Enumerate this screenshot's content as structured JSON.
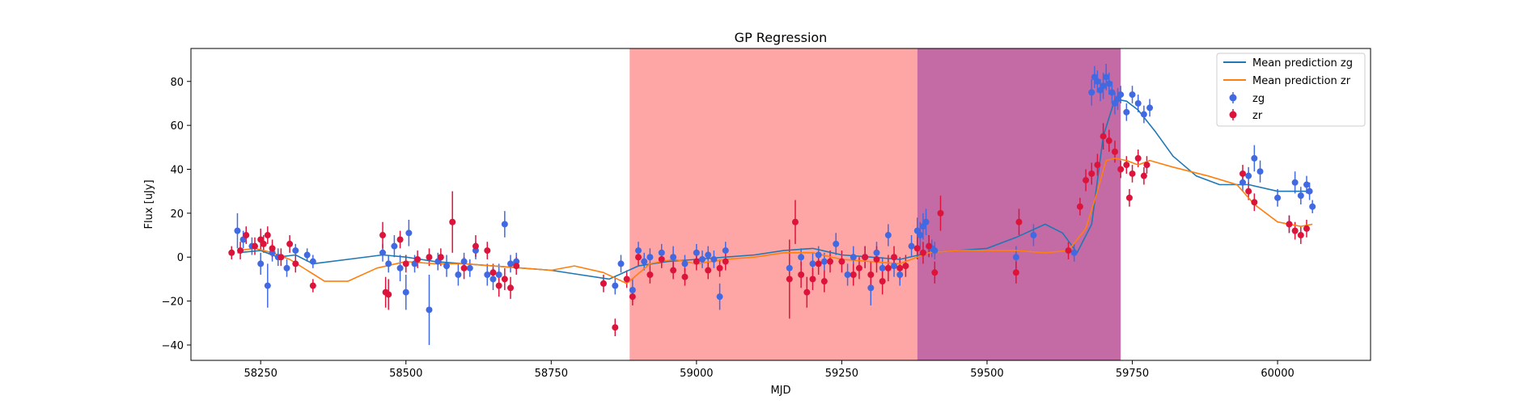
{
  "chart_data": {
    "type": "scatter",
    "title": "GP Regression",
    "xlabel": "MJD",
    "ylabel": "Flux [uJy]",
    "xlim": [
      58130,
      60160
    ],
    "ylim": [
      -47,
      95
    ],
    "xticks": [
      58250,
      58500,
      58750,
      59000,
      59250,
      59500,
      59750,
      60000
    ],
    "yticks": [
      -40,
      -20,
      0,
      20,
      40,
      60,
      80
    ],
    "grid": false,
    "legend_position": "top-right",
    "shaded_regions": [
      {
        "x0": 58885,
        "x1": 59380,
        "color": "#fea6a6"
      },
      {
        "x0": 59380,
        "x1": 59730,
        "color": "#c46ba5"
      }
    ],
    "lines": [
      {
        "name": "Mean prediction zg",
        "color": "#1f77b4",
        "x": [
          58210,
          58250,
          58280,
          58310,
          58340,
          58400,
          58460,
          58500,
          58550,
          58600,
          58650,
          58700,
          58750,
          58800,
          58850,
          58900,
          58950,
          59000,
          59050,
          59100,
          59150,
          59200,
          59250,
          59300,
          59350,
          59400,
          59450,
          59500,
          59550,
          59600,
          59630,
          59655,
          59680,
          59700,
          59720,
          59740,
          59760,
          59790,
          59820,
          59860,
          59900,
          59950,
          60000,
          60040,
          60060
        ],
        "values": [
          2,
          3,
          0,
          1,
          -3,
          -1,
          1,
          0,
          -2,
          -3,
          -4,
          -5,
          -6,
          -8,
          -10,
          -4,
          -2,
          -1,
          0,
          1,
          3,
          4,
          1,
          0,
          -1,
          2,
          3,
          4,
          9,
          15,
          11,
          2,
          15,
          55,
          72,
          71,
          67,
          57,
          46,
          37,
          33,
          33,
          30,
          30,
          30
        ]
      },
      {
        "name": "Mean prediction zr",
        "color": "#ff7f0e",
        "x": [
          58210,
          58240,
          58270,
          58300,
          58330,
          58360,
          58400,
          58450,
          58500,
          58550,
          58600,
          58650,
          58700,
          58750,
          58790,
          58840,
          58880,
          58920,
          58960,
          59000,
          59050,
          59100,
          59150,
          59200,
          59250,
          59300,
          59350,
          59400,
          59450,
          59500,
          59550,
          59600,
          59640,
          59670,
          59690,
          59705,
          59720,
          59740,
          59760,
          59780,
          59820,
          59880,
          59930,
          59960,
          60000,
          60040,
          60060
        ],
        "values": [
          3,
          4,
          2,
          -1,
          -6,
          -11,
          -11,
          -5,
          -2,
          -3,
          -3,
          -4,
          -5,
          -6,
          -4,
          -7,
          -12,
          -3,
          -1,
          -3,
          -1,
          0,
          2,
          2,
          -1,
          -2,
          -3,
          2,
          3,
          3,
          3,
          2,
          3,
          13,
          30,
          44,
          45,
          44,
          42,
          44,
          41,
          37,
          33,
          24,
          16,
          14,
          15
        ]
      }
    ],
    "series": [
      {
        "name": "zg",
        "color": "#4169e1",
        "x": [
          58210,
          58220,
          58235,
          58250,
          58262,
          58270,
          58280,
          58295,
          58310,
          58330,
          58340,
          58460,
          58470,
          58480,
          58490,
          58500,
          58505,
          58515,
          58540,
          58555,
          58570,
          58590,
          58600,
          58610,
          58620,
          58640,
          58650,
          58660,
          58670,
          58680,
          58690,
          58860,
          58870,
          58890,
          58900,
          58910,
          58920,
          58940,
          58960,
          58980,
          59000,
          59010,
          59020,
          59030,
          59040,
          59050,
          59160,
          59180,
          59200,
          59210,
          59220,
          59240,
          59260,
          59270,
          59290,
          59300,
          59310,
          59320,
          59330,
          59340,
          59350,
          59370,
          59380,
          59385,
          59390,
          59395,
          59400,
          59405,
          59410,
          59550,
          59580,
          59650,
          59680,
          59685,
          59690,
          59695,
          59700,
          59705,
          59710,
          59715,
          59720,
          59725,
          59730,
          59740,
          59750,
          59760,
          59770,
          59780,
          59940,
          59950,
          59960,
          59970,
          60000,
          60020,
          60030,
          60040,
          60050,
          60055,
          60060
        ],
        "y": [
          12,
          8,
          5,
          -3,
          -13,
          2,
          0,
          -5,
          3,
          1,
          -2,
          2,
          -3,
          5,
          -5,
          -16,
          11,
          -3,
          -24,
          -2,
          -4,
          -8,
          -2,
          -5,
          3,
          -8,
          -10,
          -8,
          15,
          -3,
          -2,
          -13,
          -3,
          -15,
          3,
          -2,
          0,
          2,
          0,
          -3,
          2,
          -1,
          1,
          -1,
          -18,
          3,
          -5,
          0,
          -3,
          1,
          -2,
          6,
          -8,
          0,
          0,
          -14,
          2,
          -5,
          10,
          -4,
          -8,
          5,
          12,
          10,
          14,
          16,
          5,
          4,
          3,
          0,
          10,
          2,
          75,
          82,
          80,
          76,
          78,
          82,
          79,
          75,
          70,
          72,
          74,
          66,
          74,
          70,
          65,
          68,
          34,
          37,
          45,
          39,
          27,
          15,
          34,
          28,
          33,
          30,
          23
        ],
        "yerr": [
          8,
          4,
          4,
          5,
          10,
          4,
          4,
          4,
          3,
          3,
          3,
          4,
          4,
          5,
          6,
          8,
          6,
          4,
          16,
          4,
          5,
          5,
          4,
          4,
          4,
          5,
          5,
          5,
          6,
          4,
          4,
          4,
          4,
          5,
          4,
          4,
          4,
          4,
          5,
          4,
          4,
          4,
          4,
          4,
          6,
          4,
          4,
          4,
          5,
          4,
          4,
          5,
          5,
          5,
          5,
          8,
          5,
          5,
          5,
          5,
          5,
          5,
          6,
          6,
          6,
          6,
          5,
          4,
          4,
          5,
          5,
          4,
          6,
          5,
          5,
          5,
          6,
          6,
          5,
          5,
          5,
          5,
          4,
          4,
          4,
          4,
          4,
          4,
          4,
          4,
          6,
          5,
          4,
          4,
          5,
          4,
          4,
          4,
          3
        ]
      },
      {
        "name": "zr",
        "color": "#dc143c",
        "x": [
          58200,
          58215,
          58225,
          58240,
          58250,
          58255,
          58262,
          58270,
          58285,
          58300,
          58310,
          58340,
          58460,
          58465,
          58470,
          58490,
          58500,
          58520,
          58540,
          58560,
          58580,
          58600,
          58620,
          58640,
          58650,
          58660,
          58670,
          58680,
          58690,
          58840,
          58860,
          58880,
          58890,
          58900,
          58920,
          58940,
          58960,
          58980,
          59000,
          59020,
          59040,
          59050,
          59160,
          59170,
          59180,
          59190,
          59200,
          59210,
          59220,
          59230,
          59250,
          59270,
          59280,
          59290,
          59300,
          59310,
          59320,
          59330,
          59340,
          59350,
          59360,
          59380,
          59390,
          59400,
          59410,
          59420,
          59550,
          59555,
          59640,
          59660,
          59670,
          59680,
          59690,
          59700,
          59710,
          59720,
          59730,
          59740,
          59745,
          59750,
          59760,
          59770,
          59775,
          59940,
          59950,
          59960,
          60020,
          60030,
          60040,
          60050
        ],
        "y": [
          2,
          3,
          10,
          5,
          8,
          6,
          10,
          4,
          0,
          6,
          -3,
          -13,
          10,
          -16,
          -17,
          8,
          -3,
          -1,
          0,
          0,
          16,
          -5,
          5,
          3,
          -7,
          -13,
          -10,
          -14,
          -4,
          -12,
          -32,
          -10,
          -18,
          0,
          -8,
          -1,
          -6,
          -9,
          -2,
          -6,
          -5,
          -2,
          -10,
          16,
          -8,
          -16,
          -10,
          -3,
          -11,
          -2,
          -2,
          -8,
          -5,
          0,
          -8,
          -1,
          -11,
          -5,
          0,
          -5,
          -4,
          4,
          2,
          5,
          -7,
          20,
          -7,
          16,
          3,
          23,
          35,
          38,
          42,
          55,
          53,
          48,
          40,
          42,
          27,
          38,
          45,
          37,
          42,
          38,
          30,
          25,
          15,
          12,
          10,
          13
        ],
        "yerr": [
          3,
          4,
          4,
          4,
          5,
          4,
          4,
          4,
          4,
          4,
          4,
          3,
          6,
          7,
          7,
          4,
          4,
          4,
          4,
          4,
          14,
          5,
          5,
          4,
          4,
          5,
          5,
          5,
          4,
          4,
          4,
          4,
          4,
          4,
          4,
          4,
          4,
          4,
          4,
          4,
          4,
          4,
          18,
          10,
          6,
          7,
          5,
          5,
          5,
          5,
          5,
          5,
          5,
          5,
          6,
          6,
          6,
          6,
          5,
          5,
          5,
          5,
          5,
          5,
          5,
          8,
          5,
          6,
          4,
          4,
          5,
          5,
          5,
          6,
          5,
          5,
          4,
          4,
          4,
          4,
          4,
          4,
          4,
          4,
          4,
          4,
          4,
          4,
          4,
          4
        ]
      }
    ]
  }
}
